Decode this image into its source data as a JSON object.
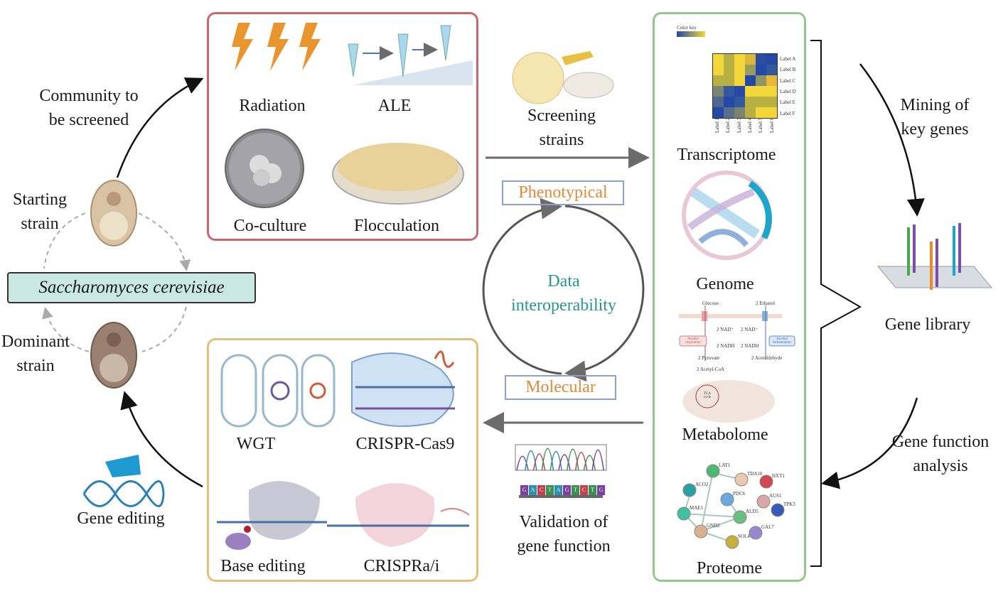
{
  "left": {
    "community": [
      "Community to",
      "be screened"
    ],
    "starting": [
      "Starting",
      "strain"
    ],
    "dominant": [
      "Dominant",
      "strain"
    ],
    "species": "Saccharomyces cerevisiae",
    "gene_editing": "Gene editing"
  },
  "screening_box": {
    "radiation": "Radiation",
    "ale": "ALE",
    "coculture": "Co-culture",
    "flocculation": "Flocculation"
  },
  "editing_box": {
    "wgt": "WGT",
    "crispr": "CRISPR-Cas9",
    "base": "Base editing",
    "crispra": "CRISPRa/i"
  },
  "center": {
    "screening_strains": [
      "Screening",
      "strains"
    ],
    "phenotypical": "Phenotypical",
    "data_interop": [
      "Data",
      "interoperability"
    ],
    "molecular": "Molecular",
    "validation": [
      "Validation of",
      "gene function"
    ],
    "seq_bases": [
      "G",
      "A",
      "C",
      "T",
      "A",
      "G",
      "T",
      "C",
      "T",
      "G"
    ]
  },
  "omics": {
    "transcriptome": "Transcriptome",
    "genome": "Genome",
    "metabolome": "Metabolome",
    "proteome": "Proteome",
    "heatmap": {
      "color_key": "Color key",
      "rows": [
        "Label A",
        "Label B",
        "Label C",
        "Label D",
        "Label E",
        "Label F"
      ],
      "cols": [
        "Label 1",
        "Label 2",
        "Label 3",
        "Label 4",
        "Label 5",
        "Label 6"
      ],
      "cells": [
        [
          "#f3d73a",
          "#b8b042",
          "#f3d73a",
          "#dcb83a",
          "#2c4ea0",
          "#2448a6"
        ],
        [
          "#f3d73a",
          "#b8b042",
          "#f3d73a",
          "#9a9c5c",
          "#2448a6",
          "#34589c"
        ],
        [
          "#b8b042",
          "#b8b042",
          "#f3d73a",
          "#2448a6",
          "#8e9464",
          "#e6b83a"
        ],
        [
          "#7a8470",
          "#34589c",
          "#2448a6",
          "#f3d73a",
          "#f3d73a",
          "#f3d73a"
        ],
        [
          "#4e6690",
          "#2448a6",
          "#34589c",
          "#b8b042",
          "#b8b042",
          "#b8b042"
        ],
        [
          "#2448a6",
          "#5a6e8c",
          "#7a8470",
          "#b8b042",
          "#f3d73a",
          "#f3d73a"
        ]
      ]
    },
    "metabolome_labels": {
      "glucose": "Glucose",
      "ethanol": "2 Ethanol",
      "nad1": "2 NAD⁺",
      "nad2": "2 NAD⁺",
      "nadh1": "2 NADH",
      "nadh2": "2 NADH",
      "aerobic": "Aerobic respiration",
      "alcohol": "Alcohol fermentation",
      "pyruvate": "2 Pyruvate",
      "acetaldehyde": "2 Acetaldehyde",
      "acetyl": "2 Acetyl-CoA",
      "tca": "TCA cycle"
    },
    "proteins": [
      "LAT1",
      "TDA10",
      "HXT1",
      "ACO2",
      "PDC6",
      "AUS1",
      "TPK3",
      "MAE1",
      "ALD5",
      "GND2",
      "GAL7",
      "SOL4"
    ]
  },
  "right": {
    "mining": [
      "Mining of",
      "key genes"
    ],
    "library": "Gene library",
    "function": [
      "Gene function",
      "analysis"
    ]
  },
  "colors": {
    "red_box": "#c9676c",
    "yellow_box": "#e2c27a",
    "green_box": "#92c78d",
    "accent_orange": "#e28a3a",
    "teal": "#2a958a",
    "tag_border": "#8ea2c8",
    "arrow_gray": "#6b6b6b"
  }
}
